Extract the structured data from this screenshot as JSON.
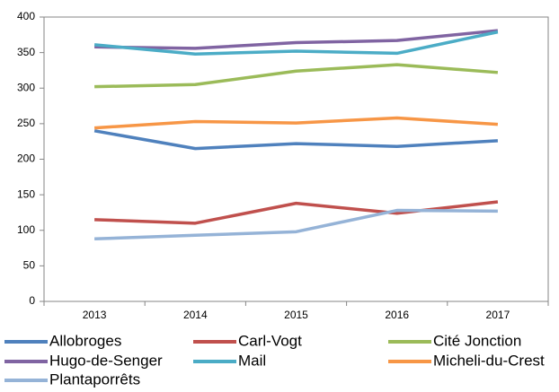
{
  "chart_data": {
    "type": "line",
    "categories": [
      "2013",
      "2014",
      "2015",
      "2016",
      "2017"
    ],
    "series": [
      {
        "name": "Allobroges",
        "color": "#4f81bd",
        "values": [
          240,
          215,
          222,
          218,
          226
        ]
      },
      {
        "name": "Carl-Vogt",
        "color": "#c0504d",
        "values": [
          115,
          110,
          138,
          124,
          140
        ]
      },
      {
        "name": "Cité Jonction",
        "color": "#9bbb59",
        "values": [
          302,
          305,
          324,
          333,
          322
        ]
      },
      {
        "name": "Hugo-de-Senger",
        "color": "#8064a2",
        "values": [
          358,
          356,
          364,
          367,
          381
        ]
      },
      {
        "name": "Mail",
        "color": "#4bacc6",
        "values": [
          361,
          348,
          352,
          349,
          379
        ]
      },
      {
        "name": "Micheli-du-Crest",
        "color": "#f79646",
        "values": [
          244,
          253,
          251,
          258,
          249
        ]
      },
      {
        "name": "Plantaporrêts",
        "color": "#95b3d7",
        "values": [
          88,
          93,
          98,
          128,
          127
        ]
      }
    ],
    "ylim": [
      0,
      400
    ],
    "yticks": [
      0,
      50,
      100,
      150,
      200,
      250,
      300,
      350,
      400
    ],
    "grid": false,
    "legend": "bottom"
  }
}
